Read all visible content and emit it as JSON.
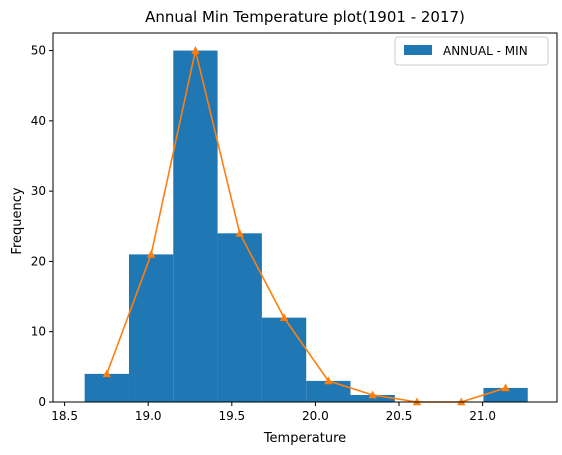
{
  "chart_data": {
    "type": "bar",
    "title": "Annual Min Temperature plot(1901 - 2017)",
    "xlabel": "Temperature",
    "ylabel": "Frequency",
    "xlim": [
      18.6,
      21.4
    ],
    "ylim": [
      0,
      52.5
    ],
    "xticks": [
      "18.5",
      "19.0",
      "19.5",
      "20.0",
      "20.5",
      "21.0"
    ],
    "yticks": [
      "0",
      "10",
      "20",
      "30",
      "40",
      "50"
    ],
    "histogram": {
      "name": "ANNUAL - MIN",
      "color": "#1f77b4",
      "bin_edges": [
        18.62,
        18.885,
        19.15,
        19.415,
        19.68,
        19.945,
        20.21,
        20.475,
        20.74,
        21.005,
        21.27
      ],
      "counts": [
        4,
        21,
        50,
        24,
        12,
        3,
        1,
        0,
        0,
        2
      ]
    },
    "line": {
      "color": "#ff7f0e",
      "marker": "triangle",
      "x": [
        18.7525,
        19.0175,
        19.2825,
        19.5475,
        19.8125,
        20.0775,
        20.3425,
        20.6075,
        20.8725,
        21.1375
      ],
      "y": [
        4,
        21,
        50,
        24,
        12,
        3,
        1,
        0,
        0,
        2
      ]
    },
    "legend": {
      "placement": "top-right",
      "entries": [
        "ANNUAL - MIN"
      ]
    },
    "grid": false
  }
}
